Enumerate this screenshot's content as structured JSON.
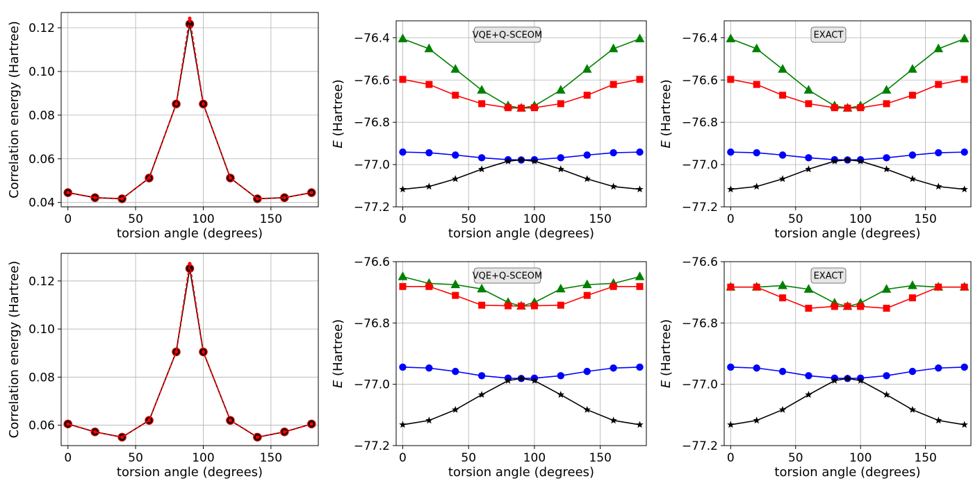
{
  "figure": {
    "description_title": ""
  },
  "chart_data": [
    {
      "type": "line",
      "panel": "top-left",
      "title": "",
      "xlabel": "torsion angle (degrees)",
      "ylabel": "Correlation energy (Hartree)",
      "ylabel_italic_prefix": "",
      "xlim": [
        -5,
        185
      ],
      "ylim": [
        0.038,
        0.127
      ],
      "xticks": [
        0,
        50,
        100,
        150
      ],
      "xtick_labels": [
        "0",
        "50",
        "100",
        "150"
      ],
      "yticks": [
        0.04,
        0.06,
        0.08,
        0.1,
        0.12
      ],
      "ytick_labels": [
        "0.04",
        "0.06",
        "0.08",
        "0.10",
        "0.12"
      ],
      "grid": true,
      "x": [
        0,
        20,
        40,
        60,
        80,
        90,
        100,
        120,
        140,
        160,
        180
      ],
      "series": [
        {
          "color": "#000000",
          "marker": "circle-large",
          "dashed": false,
          "values": [
            0.0445,
            0.0422,
            0.0417,
            0.0512,
            0.0851,
            0.1217,
            0.0851,
            0.0512,
            0.0417,
            0.0422,
            0.0445
          ]
        },
        {
          "color": "#ff0000",
          "marker": "dot-small",
          "dashed": true,
          "values": [
            0.0445,
            0.0422,
            0.0417,
            0.0512,
            0.0851,
            0.1243,
            0.0851,
            0.0512,
            0.0417,
            0.0422,
            0.0445
          ]
        }
      ],
      "annotation": ""
    },
    {
      "type": "line",
      "panel": "top-middle",
      "title": "",
      "xlabel": "torsion angle (degrees)",
      "ylabel": " (Hartree)",
      "ylabel_italic_prefix": "E",
      "xlim": [
        -5,
        185
      ],
      "ylim": [
        -77.2,
        -76.32
      ],
      "xticks": [
        0,
        50,
        100,
        150
      ],
      "xtick_labels": [
        "0",
        "50",
        "100",
        "150"
      ],
      "yticks": [
        -77.2,
        -77.0,
        -76.8,
        -76.6,
        -76.4
      ],
      "ytick_labels": [
        "−77.2",
        "−77.0",
        "−76.8",
        "−76.6",
        "−76.4"
      ],
      "grid": true,
      "x": [
        0,
        20,
        40,
        60,
        80,
        90,
        100,
        120,
        140,
        160,
        180
      ],
      "series": [
        {
          "color": "#008000",
          "marker": "triangle",
          "dashed": false,
          "values": [
            -76.405,
            -76.452,
            -76.549,
            -76.648,
            -76.722,
            -76.733,
            -76.722,
            -76.648,
            -76.549,
            -76.452,
            -76.405
          ]
        },
        {
          "color": "#ff0000",
          "marker": "square",
          "dashed": false,
          "values": [
            -76.597,
            -76.621,
            -76.672,
            -76.712,
            -76.731,
            -76.733,
            -76.731,
            -76.712,
            -76.672,
            -76.621,
            -76.597
          ]
        },
        {
          "color": "#0000ff",
          "marker": "circle",
          "dashed": false,
          "values": [
            -76.941,
            -76.944,
            -76.955,
            -76.968,
            -76.977,
            -76.978,
            -76.977,
            -76.968,
            -76.955,
            -76.944,
            -76.941
          ]
        },
        {
          "color": "#000000",
          "marker": "star",
          "dashed": false,
          "values": [
            -77.117,
            -77.104,
            -77.068,
            -77.022,
            -76.984,
            -76.978,
            -76.984,
            -77.022,
            -77.068,
            -77.104,
            -77.117
          ]
        }
      ],
      "annotation": "VQE+Q-SCEOM"
    },
    {
      "type": "line",
      "panel": "top-right",
      "title": "",
      "xlabel": "torsion angle (degrees)",
      "ylabel": " (Hartree)",
      "ylabel_italic_prefix": "E",
      "xlim": [
        -5,
        185
      ],
      "ylim": [
        -77.2,
        -76.32
      ],
      "xticks": [
        0,
        50,
        100,
        150
      ],
      "xtick_labels": [
        "0",
        "50",
        "100",
        "150"
      ],
      "yticks": [
        -77.2,
        -77.0,
        -76.8,
        -76.6,
        -76.4
      ],
      "ytick_labels": [
        "−77.2",
        "−77.0",
        "−76.8",
        "−76.6",
        "−76.4"
      ],
      "grid": true,
      "x": [
        0,
        20,
        40,
        60,
        80,
        90,
        100,
        120,
        140,
        160,
        180
      ],
      "series": [
        {
          "color": "#008000",
          "marker": "triangle",
          "dashed": false,
          "values": [
            -76.405,
            -76.452,
            -76.549,
            -76.648,
            -76.722,
            -76.733,
            -76.722,
            -76.648,
            -76.549,
            -76.452,
            -76.405
          ]
        },
        {
          "color": "#ff0000",
          "marker": "square",
          "dashed": false,
          "values": [
            -76.597,
            -76.621,
            -76.672,
            -76.712,
            -76.731,
            -76.733,
            -76.731,
            -76.712,
            -76.672,
            -76.621,
            -76.597
          ]
        },
        {
          "color": "#0000ff",
          "marker": "circle",
          "dashed": false,
          "values": [
            -76.941,
            -76.944,
            -76.955,
            -76.968,
            -76.977,
            -76.978,
            -76.977,
            -76.968,
            -76.955,
            -76.944,
            -76.941
          ]
        },
        {
          "color": "#000000",
          "marker": "star",
          "dashed": false,
          "values": [
            -77.117,
            -77.104,
            -77.068,
            -77.022,
            -76.984,
            -76.978,
            -76.984,
            -77.022,
            -77.068,
            -77.104,
            -77.117
          ]
        }
      ],
      "annotation": "EXACT"
    },
    {
      "type": "line",
      "panel": "bottom-left",
      "title": "",
      "xlabel": "torsion angle (degrees)",
      "ylabel": "Correlation energy (Hartree)",
      "ylabel_italic_prefix": "",
      "xlim": [
        -5,
        185
      ],
      "ylim": [
        0.0515,
        0.1315
      ],
      "xticks": [
        0,
        50,
        100,
        150
      ],
      "xtick_labels": [
        "0",
        "50",
        "100",
        "150"
      ],
      "yticks": [
        0.06,
        0.08,
        0.1,
        0.12
      ],
      "ytick_labels": [
        "0.06",
        "0.08",
        "0.10",
        "0.12"
      ],
      "grid": true,
      "x": [
        0,
        20,
        40,
        60,
        80,
        90,
        100,
        120,
        140,
        160,
        180
      ],
      "series": [
        {
          "color": "#000000",
          "marker": "circle-large",
          "dashed": false,
          "values": [
            0.0605,
            0.0572,
            0.055,
            0.062,
            0.0905,
            0.1252,
            0.0905,
            0.062,
            0.055,
            0.0572,
            0.0605
          ]
        },
        {
          "color": "#ff0000",
          "marker": "dot-small",
          "dashed": true,
          "values": [
            0.0605,
            0.0572,
            0.055,
            0.062,
            0.0905,
            0.1272,
            0.0905,
            0.062,
            0.055,
            0.0572,
            0.0605
          ]
        }
      ],
      "annotation": ""
    },
    {
      "type": "line",
      "panel": "bottom-middle",
      "title": "",
      "xlabel": "torsion angle (degrees)",
      "ylabel": " (Hartree)",
      "ylabel_italic_prefix": "E",
      "xlim": [
        -5,
        185
      ],
      "ylim": [
        -77.2,
        -76.6
      ],
      "xticks": [
        0,
        50,
        100,
        150
      ],
      "xtick_labels": [
        "0",
        "50",
        "100",
        "150"
      ],
      "yticks": [
        -77.2,
        -77.0,
        -76.8,
        -76.6
      ],
      "ytick_labels": [
        "−77.2",
        "−77.0",
        "−76.8",
        "−76.6"
      ],
      "grid": true,
      "x": [
        0,
        20,
        40,
        60,
        80,
        90,
        100,
        120,
        140,
        160,
        180
      ],
      "series": [
        {
          "color": "#008000",
          "marker": "triangle",
          "dashed": false,
          "values": [
            -76.649,
            -76.671,
            -76.675,
            -76.689,
            -76.733,
            -76.745,
            -76.733,
            -76.689,
            -76.675,
            -76.671,
            -76.649
          ]
        },
        {
          "color": "#ff0000",
          "marker": "square",
          "dashed": false,
          "values": [
            -76.681,
            -76.681,
            -76.71,
            -76.742,
            -76.744,
            -76.745,
            -76.744,
            -76.742,
            -76.71,
            -76.681,
            -76.681
          ]
        },
        {
          "color": "#0000ff",
          "marker": "circle",
          "dashed": false,
          "values": [
            -76.944,
            -76.947,
            -76.958,
            -76.972,
            -76.98,
            -76.981,
            -76.98,
            -76.972,
            -76.958,
            -76.947,
            -76.944
          ]
        },
        {
          "color": "#000000",
          "marker": "star",
          "dashed": false,
          "values": [
            -77.132,
            -77.118,
            -77.083,
            -77.034,
            -76.988,
            -76.981,
            -76.988,
            -77.034,
            -77.083,
            -77.118,
            -77.132
          ]
        }
      ],
      "annotation": "VQE+Q-SCEOM"
    },
    {
      "type": "line",
      "panel": "bottom-right",
      "title": "",
      "xlabel": "torsion angle (degrees)",
      "ylabel": " (Hartree)",
      "ylabel_italic_prefix": "E",
      "xlim": [
        -5,
        185
      ],
      "ylim": [
        -77.2,
        -76.6
      ],
      "xticks": [
        0,
        50,
        100,
        150
      ],
      "xtick_labels": [
        "0",
        "50",
        "100",
        "150"
      ],
      "yticks": [
        -77.2,
        -77.0,
        -76.8,
        -76.6
      ],
      "ytick_labels": [
        "−77.2",
        "−77.0",
        "−76.8",
        "−76.6"
      ],
      "grid": true,
      "x": [
        0,
        20,
        40,
        60,
        80,
        90,
        100,
        120,
        140,
        160,
        180
      ],
      "series": [
        {
          "color": "#008000",
          "marker": "triangle",
          "dashed": false,
          "values": [
            -76.683,
            -76.683,
            -76.678,
            -76.69,
            -76.735,
            -76.746,
            -76.735,
            -76.69,
            -76.678,
            -76.683,
            -76.683
          ]
        },
        {
          "color": "#ff0000",
          "marker": "square",
          "dashed": false,
          "values": [
            -76.683,
            -76.683,
            -76.718,
            -76.752,
            -76.746,
            -76.746,
            -76.746,
            -76.752,
            -76.718,
            -76.683,
            -76.683
          ]
        },
        {
          "color": "#0000ff",
          "marker": "circle",
          "dashed": false,
          "values": [
            -76.944,
            -76.947,
            -76.958,
            -76.972,
            -76.98,
            -76.981,
            -76.98,
            -76.972,
            -76.958,
            -76.947,
            -76.944
          ]
        },
        {
          "color": "#000000",
          "marker": "star",
          "dashed": false,
          "values": [
            -77.132,
            -77.118,
            -77.083,
            -77.034,
            -76.988,
            -76.981,
            -76.988,
            -77.034,
            -77.083,
            -77.118,
            -77.132
          ]
        }
      ],
      "annotation": "EXACT"
    }
  ]
}
